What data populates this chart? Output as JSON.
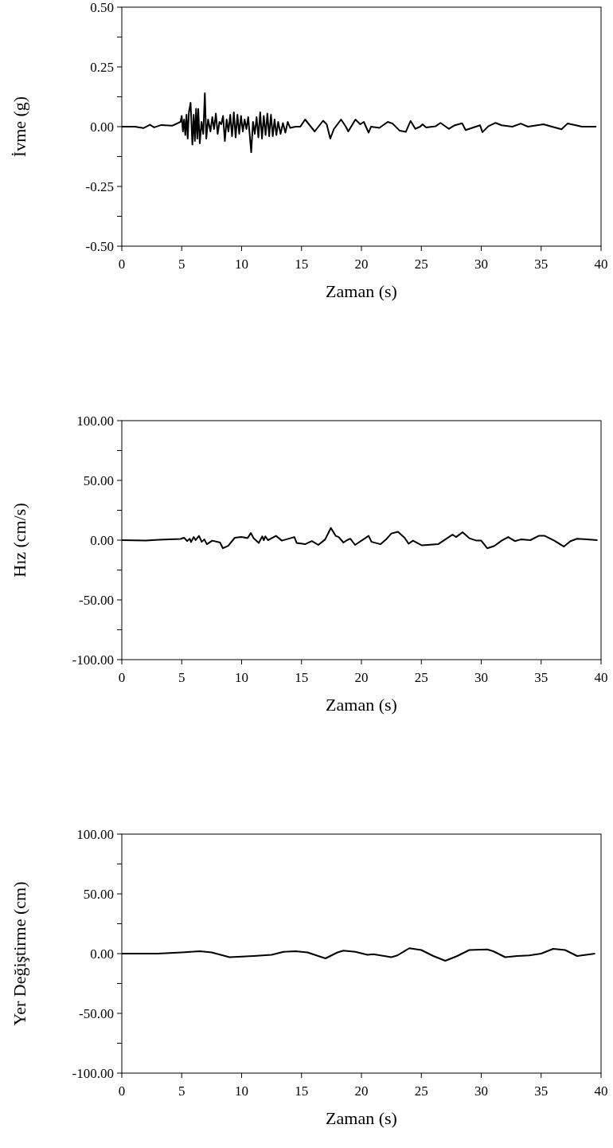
{
  "chart_data": [
    {
      "type": "line",
      "xlabel": "Zaman (s)",
      "ylabel": "İvme (g)",
      "color": "#000000",
      "xlim": [
        0,
        40
      ],
      "ylim": [
        -0.5,
        0.5
      ],
      "xticks": [
        0,
        5,
        10,
        15,
        20,
        25,
        30,
        35,
        40
      ],
      "yticks": [
        {
          "value": -0.5,
          "label": "-0.50"
        },
        {
          "value": -0.375,
          "label": null
        },
        {
          "value": -0.25,
          "label": "-0.25"
        },
        {
          "value": -0.125,
          "label": null
        },
        {
          "value": 0,
          "label": "0.00"
        },
        {
          "value": 0.125,
          "label": null
        },
        {
          "value": 0.25,
          "label": "0.25"
        },
        {
          "value": 0.375,
          "label": null
        },
        {
          "value": 0.5,
          "label": "0.50"
        }
      ],
      "x": [
        0,
        1.1,
        1.8,
        2.35,
        2.7,
        3.3,
        4.2,
        4.9,
        5.0,
        5.1,
        5.2,
        5.3,
        5.4,
        5.5,
        5.6,
        5.74,
        5.89,
        6.0,
        6.1,
        6.2,
        6.3,
        6.38,
        6.51,
        6.65,
        6.8,
        6.93,
        7.05,
        7.2,
        7.4,
        7.55,
        7.7,
        7.85,
        8.0,
        8.15,
        8.3,
        8.45,
        8.6,
        8.75,
        8.9,
        9.05,
        9.2,
        9.35,
        9.5,
        9.65,
        9.8,
        9.95,
        10.1,
        10.25,
        10.4,
        10.55,
        10.8,
        10.95,
        11.1,
        11.25,
        11.4,
        11.55,
        11.7,
        11.85,
        12.0,
        12.15,
        12.3,
        12.45,
        12.6,
        12.75,
        12.9,
        13.05,
        13.25,
        13.45,
        13.65,
        13.85,
        14.05,
        14.5,
        14.9,
        15.3,
        16.1,
        16.8,
        17.1,
        17.4,
        17.7,
        18.3,
        18.7,
        18.9,
        19.5,
        19.9,
        20.2,
        20.6,
        20.8,
        21.5,
        22.2,
        22.6,
        23.2,
        23.7,
        24.1,
        24.5,
        24.9,
        25.1,
        25.4,
        26.2,
        26.6,
        27.3,
        27.8,
        28.4,
        28.7,
        29.9,
        30.1,
        30.6,
        31.2,
        31.7,
        32.6,
        33.3,
        33.9,
        35.2,
        35.9,
        36.7,
        37.2,
        37.9,
        38.4,
        39.6
      ],
      "values": [
        0,
        0,
        -0.006,
        0.008,
        -0.003,
        0.007,
        0.004,
        0.02,
        0.045,
        -0.02,
        0.03,
        -0.035,
        0.05,
        -0.05,
        0.06,
        0.1,
        -0.075,
        0.05,
        -0.06,
        0.075,
        -0.05,
        0.074,
        -0.07,
        0.02,
        -0.03,
        0.14,
        -0.05,
        0.03,
        -0.02,
        0.04,
        -0.01,
        0.055,
        -0.03,
        0.02,
        0.01,
        0.045,
        -0.06,
        0.03,
        -0.02,
        0.05,
        -0.04,
        0.06,
        -0.045,
        0.05,
        -0.03,
        0.045,
        -0.02,
        0.03,
        -0.01,
        0.04,
        -0.107,
        0.02,
        -0.03,
        0.04,
        -0.045,
        0.06,
        -0.05,
        0.045,
        -0.035,
        0.055,
        -0.04,
        0.05,
        -0.04,
        0.03,
        -0.035,
        0.02,
        -0.03,
        0.015,
        -0.025,
        0.02,
        -0.005,
        0,
        0,
        0.03,
        -0.02,
        0.025,
        0.01,
        -0.05,
        -0.01,
        0.03,
        0,
        -0.02,
        0.03,
        0.01,
        0.02,
        -0.025,
        0,
        -0.005,
        0.02,
        0.013,
        -0.017,
        -0.022,
        0.024,
        -0.009,
        0,
        0.01,
        -0.003,
        0.002,
        0.016,
        -0.009,
        0.006,
        0.014,
        -0.014,
        0.006,
        -0.023,
        0.002,
        0.016,
        0.006,
        0,
        0.013,
        0,
        0.01,
        0,
        -0.011,
        0.013,
        0.006,
        0,
        0
      ]
    },
    {
      "type": "line",
      "xlabel": "Zaman (s)",
      "ylabel": "Hız (cm/s)",
      "color": "#000000",
      "xlim": [
        0,
        40
      ],
      "ylim": [
        -100,
        100
      ],
      "xticks": [
        0,
        5,
        10,
        15,
        20,
        25,
        30,
        35,
        40
      ],
      "yticks": [
        {
          "value": -100,
          "label": "-100.00"
        },
        {
          "value": -75,
          "label": null
        },
        {
          "value": -50,
          "label": "-50.00"
        },
        {
          "value": -25,
          "label": null
        },
        {
          "value": 0,
          "label": "0.00"
        },
        {
          "value": 25,
          "label": null
        },
        {
          "value": 50,
          "label": "50.00"
        },
        {
          "value": 75,
          "label": null
        },
        {
          "value": 100,
          "label": "100.00"
        }
      ],
      "x": [
        0,
        2.0,
        3.1,
        4.9,
        5.2,
        5.45,
        5.67,
        5.78,
        6.0,
        6.16,
        6.44,
        6.67,
        6.89,
        7.1,
        7.55,
        8.2,
        8.44,
        8.88,
        9.43,
        9.99,
        10.5,
        10.77,
        11.0,
        11.43,
        11.72,
        11.85,
        11.98,
        12.2,
        12.5,
        12.87,
        13.36,
        14.4,
        14.6,
        15.3,
        15.86,
        16.4,
        16.97,
        17.45,
        17.85,
        18.1,
        18.5,
        18.8,
        19.07,
        19.47,
        20.6,
        20.84,
        21.6,
        22.06,
        22.5,
        23.05,
        23.6,
        23.94,
        24.3,
        25.05,
        25.5,
        26.4,
        27.6,
        27.9,
        28.44,
        29.0,
        29.6,
        30.0,
        30.5,
        31.1,
        31.7,
        32.25,
        32.8,
        33.3,
        34.1,
        34.8,
        35.3,
        36.1,
        36.9,
        37.45,
        38.0,
        38.8,
        39.7
      ],
      "values": [
        0,
        -0.4,
        0.4,
        1,
        2,
        -0.8,
        1.2,
        -1.6,
        2.6,
        0,
        3.6,
        -1.4,
        0.6,
        -3.4,
        -0.4,
        -2,
        -6.8,
        -4.8,
        2,
        2.6,
        1.6,
        6,
        1.6,
        -2.4,
        3.2,
        0,
        3.2,
        0,
        1.6,
        3.6,
        -0.4,
        2.6,
        -2.4,
        -3.4,
        -0.8,
        -4,
        0.6,
        10.2,
        3.6,
        2.6,
        -2,
        0,
        1.2,
        -4,
        3.6,
        -1.4,
        -3.4,
        0.6,
        5.6,
        7,
        2,
        -3,
        -0.4,
        -4.4,
        -4,
        -3.4,
        4.6,
        2.6,
        6.6,
        1.6,
        -0.4,
        -0.4,
        -6.8,
        -4.8,
        -0.4,
        2.6,
        -0.8,
        0.6,
        0,
        3.6,
        3.6,
        -0.4,
        -5.4,
        -0.8,
        1.2,
        0.6,
        0
      ]
    },
    {
      "type": "line",
      "xlabel": "Zaman (s)",
      "ylabel": "Yer Değiştirme (cm)",
      "color": "#000000",
      "xlim": [
        0,
        40
      ],
      "ylim": [
        -100,
        100
      ],
      "xticks": [
        0,
        5,
        10,
        15,
        20,
        25,
        30,
        35,
        40
      ],
      "yticks": [
        {
          "value": -100,
          "label": "-100.00"
        },
        {
          "value": -75,
          "label": null
        },
        {
          "value": -50,
          "label": "-50.00"
        },
        {
          "value": -25,
          "label": null
        },
        {
          "value": 0,
          "label": "0.00"
        },
        {
          "value": 25,
          "label": null
        },
        {
          "value": 50,
          "label": "50.00"
        },
        {
          "value": 75,
          "label": null
        },
        {
          "value": 100,
          "label": "100.00"
        }
      ],
      "x": [
        0,
        3,
        5,
        6.5,
        7.5,
        9,
        11,
        12.5,
        13.5,
        14.5,
        15.5,
        17,
        18,
        18.5,
        19.5,
        20.5,
        21,
        22.5,
        23,
        24,
        25,
        26,
        27,
        28,
        29,
        30.5,
        31,
        32,
        33,
        34,
        35,
        36,
        37,
        38,
        39.5
      ],
      "values": [
        0,
        0,
        1,
        2,
        1,
        -3,
        -2,
        -1,
        1.5,
        2,
        1,
        -4,
        1,
        2.5,
        1.5,
        -1,
        -0.5,
        -3,
        -1.5,
        4.5,
        3,
        -2,
        -6,
        -2,
        3,
        3.5,
        2,
        -3,
        -2,
        -1.5,
        0,
        4,
        3,
        -2,
        0
      ]
    }
  ]
}
